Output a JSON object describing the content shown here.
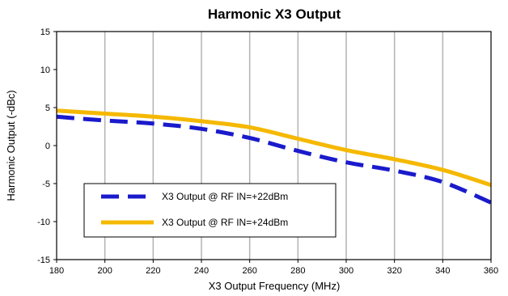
{
  "chart_data": {
    "type": "line",
    "title": "Harmonic X3 Output",
    "xlabel": "X3 Output Frequency (MHz)",
    "ylabel": "Harmonic Output (-dBc)",
    "xlim": [
      180,
      360
    ],
    "ylim": [
      -15,
      15
    ],
    "x_ticks": [
      180,
      200,
      220,
      240,
      260,
      280,
      300,
      320,
      340,
      360
    ],
    "y_ticks": [
      -15,
      -10,
      -5,
      0,
      5,
      10,
      15
    ],
    "x_tick_labels": [
      "180",
      "200",
      "220",
      "240",
      "260",
      "280",
      "300",
      "320",
      "340",
      "360"
    ],
    "y_tick_labels": [
      "-15",
      "-10",
      "-5",
      "0",
      "5",
      "10",
      "15"
    ],
    "grid": "vertical",
    "legend_position": "lower-left",
    "series": [
      {
        "name": "X3 Output @ RF IN=+22dBm",
        "color": "#1a1acc",
        "style": "dashed",
        "x": [
          180,
          200,
          220,
          240,
          260,
          280,
          300,
          320,
          340,
          360
        ],
        "y": [
          3.8,
          3.3,
          2.9,
          2.2,
          1.0,
          -0.7,
          -2.2,
          -3.3,
          -4.8,
          -7.5
        ]
      },
      {
        "name": "X3 Output @ RF IN=+24dBm",
        "color": "#f5b800",
        "style": "solid",
        "x": [
          180,
          200,
          220,
          240,
          260,
          280,
          300,
          320,
          340,
          360
        ],
        "y": [
          4.6,
          4.2,
          3.8,
          3.2,
          2.4,
          0.9,
          -0.6,
          -1.8,
          -3.2,
          -5.2
        ]
      }
    ]
  }
}
